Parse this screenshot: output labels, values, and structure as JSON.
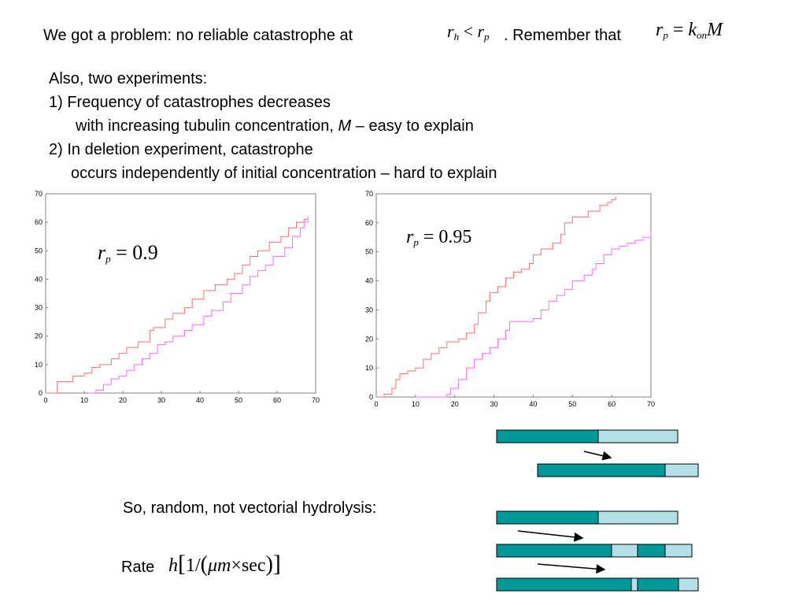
{
  "slide": {
    "headline_text": "We got a problem: no reliable catastrophe at",
    "headline_after": ". Remember that",
    "cond_lhs": "r",
    "cond_lhs_sub": "h",
    "cond_op": "<",
    "cond_rhs": "r",
    "cond_rhs_sub": "p",
    "eq_lhs": "r",
    "eq_lhs_sub": "p",
    "eq_op": "=",
    "eq_k": "k",
    "eq_k_sub": "on",
    "eq_M": "M",
    "experiments_intro": "Also, two experiments:",
    "exp1_line1": "1) Frequency of catastrophes decreases",
    "exp1_line2_a": "with increasing tubulin concentration,",
    "exp1_line2_M": "M",
    "exp1_line2_b": "– easy to explain",
    "exp2_line1": "2) In deletion experiment, catastrophe",
    "exp2_line2": "occurs independently of initial concentration – hard to explain",
    "hydrolysis_text": "So, random, not vectorial hydrolysis:",
    "rate_label": "Rate",
    "rate_h": "h",
    "rate_one": "1/",
    "rate_mu": "μm",
    "rate_times": "×",
    "rate_sec": "sec"
  },
  "colors": {
    "series_red": "#ff6f6f",
    "series_magenta": "#ff66ff",
    "bar_dark": "#009999",
    "bar_light": "#b3e0e6",
    "axis": "#7f7f7f"
  },
  "chart_data": [
    {
      "type": "line",
      "annotation": {
        "lhs": "r",
        "sub": "p",
        "op": "=",
        "value": "0.9"
      },
      "xlim": [
        0,
        70
      ],
      "ylim": [
        0,
        70
      ],
      "xticks": [
        0,
        10,
        20,
        30,
        40,
        50,
        60,
        70
      ],
      "yticks": [
        0,
        10,
        20,
        30,
        40,
        50,
        60,
        70
      ],
      "series": [
        {
          "values": [
            [
              0,
              0
            ],
            [
              3,
              3
            ],
            [
              3,
              4
            ],
            [
              6,
              4
            ],
            [
              7,
              6
            ],
            [
              10,
              7
            ],
            [
              12,
              9
            ],
            [
              14,
              10
            ],
            [
              17,
              12
            ],
            [
              19,
              14
            ],
            [
              21,
              16
            ],
            [
              24,
              18
            ],
            [
              27,
              22
            ],
            [
              28,
              23
            ],
            [
              31,
              26
            ],
            [
              33,
              28
            ],
            [
              36,
              30
            ],
            [
              38,
              33
            ],
            [
              41,
              36
            ],
            [
              44,
              38
            ],
            [
              47,
              40
            ],
            [
              49,
              42
            ],
            [
              51,
              45
            ],
            [
              53,
              48
            ],
            [
              55,
              50
            ],
            [
              58,
              53
            ],
            [
              61,
              55
            ],
            [
              63,
              58
            ],
            [
              65,
              60
            ],
            [
              67,
              61
            ],
            [
              68,
              61
            ]
          ]
        },
        {
          "values": [
            [
              11,
              0
            ],
            [
              13,
              1
            ],
            [
              15,
              3
            ],
            [
              17,
              5
            ],
            [
              19,
              6
            ],
            [
              21,
              8
            ],
            [
              23,
              10
            ],
            [
              25,
              12
            ],
            [
              27,
              14
            ],
            [
              29,
              17
            ],
            [
              31,
              18
            ],
            [
              33,
              20
            ],
            [
              36,
              22
            ],
            [
              38,
              24
            ],
            [
              41,
              27
            ],
            [
              43,
              29
            ],
            [
              46,
              32
            ],
            [
              48,
              35
            ],
            [
              51,
              38
            ],
            [
              53,
              41
            ],
            [
              55,
              43
            ],
            [
              57,
              45
            ],
            [
              59,
              48
            ],
            [
              62,
              51
            ],
            [
              64,
              55
            ],
            [
              66,
              58
            ],
            [
              67,
              60
            ],
            [
              68,
              62
            ]
          ]
        }
      ]
    },
    {
      "type": "line",
      "annotation": {
        "lhs": "r",
        "sub": "p",
        "op": "=",
        "value": "0.95"
      },
      "xlim": [
        0,
        70
      ],
      "ylim": [
        0,
        70
      ],
      "xticks": [
        0,
        10,
        20,
        30,
        40,
        50,
        60,
        70
      ],
      "yticks": [
        0,
        10,
        20,
        30,
        40,
        50,
        60,
        70
      ],
      "series": [
        {
          "values": [
            [
              0,
              0
            ],
            [
              2,
              1
            ],
            [
              4,
              3
            ],
            [
              5,
              6
            ],
            [
              6,
              8
            ],
            [
              8,
              9
            ],
            [
              10,
              10
            ],
            [
              12,
              13
            ],
            [
              14,
              15
            ],
            [
              16,
              17
            ],
            [
              18,
              19
            ],
            [
              21,
              20
            ],
            [
              23,
              22
            ],
            [
              25,
              25
            ],
            [
              26,
              29
            ],
            [
              28,
              33
            ],
            [
              29,
              36
            ],
            [
              31,
              38
            ],
            [
              33,
              41
            ],
            [
              35,
              43
            ],
            [
              37,
              44
            ],
            [
              39,
              46
            ],
            [
              40,
              49
            ],
            [
              42,
              51
            ],
            [
              45,
              53
            ],
            [
              47,
              56
            ],
            [
              48,
              60
            ],
            [
              50,
              62
            ],
            [
              54,
              64
            ],
            [
              57,
              66
            ],
            [
              59,
              67
            ],
            [
              60,
              68
            ],
            [
              61,
              69
            ]
          ]
        },
        {
          "values": [
            [
              10,
              0
            ],
            [
              18,
              1
            ],
            [
              19,
              3
            ],
            [
              21,
              6
            ],
            [
              23,
              10
            ],
            [
              25,
              13
            ],
            [
              27,
              15
            ],
            [
              29,
              17
            ],
            [
              31,
              20
            ],
            [
              33,
              23
            ],
            [
              34,
              26
            ],
            [
              36,
              26
            ],
            [
              40,
              27
            ],
            [
              42,
              30
            ],
            [
              44,
              33
            ],
            [
              46,
              35
            ],
            [
              48,
              37
            ],
            [
              50,
              40
            ],
            [
              53,
              42
            ],
            [
              55,
              44
            ],
            [
              56,
              46
            ],
            [
              58,
              49
            ],
            [
              60,
              51
            ],
            [
              62,
              52
            ],
            [
              64,
              53
            ],
            [
              66,
              54
            ],
            [
              68,
              55
            ],
            [
              70,
              57
            ]
          ]
        }
      ]
    }
  ]
}
